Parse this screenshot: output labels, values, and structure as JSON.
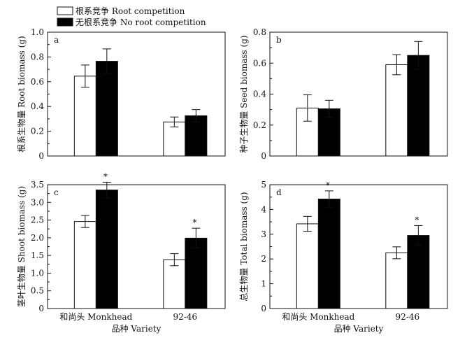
{
  "legend": {
    "entries": [
      {
        "label": "根系竞争 Root competition",
        "fill": "#ffffff"
      },
      {
        "label": "无根系竞争 No root competition",
        "fill": "#000000"
      }
    ]
  },
  "colors": {
    "root_competition": "#ffffff",
    "no_root_competition": "#000000",
    "axis": "#111111"
  },
  "chart_data": [
    {
      "type": "bar",
      "panel": "a",
      "ylabel": "根系生物量 Root biomass (g)",
      "xlabel": "",
      "categories": [
        "和尚头 Monkhead",
        "92-46"
      ],
      "ylim": [
        0,
        1.0
      ],
      "yticks": [
        0,
        0.2,
        0.4,
        0.6,
        0.8,
        1.0
      ],
      "ytick_labels": [
        "0",
        "0.2",
        "0.4",
        "0.6",
        "0.8",
        "1.0"
      ],
      "show_xtick_labels": false,
      "series": [
        {
          "name": "根系竞争 Root competition",
          "values": [
            0.645,
            0.275
          ],
          "errors": [
            0.09,
            0.04
          ],
          "sig": [
            "",
            ""
          ]
        },
        {
          "name": "无根系竞争 No root competition",
          "values": [
            0.765,
            0.325
          ],
          "errors": [
            0.1,
            0.05
          ],
          "sig": [
            "",
            ""
          ]
        }
      ]
    },
    {
      "type": "bar",
      "panel": "b",
      "ylabel": "种子生物量 Seed biomass (g)",
      "xlabel": "",
      "categories": [
        "和尚头 Monkhead",
        "92-46"
      ],
      "ylim": [
        0,
        0.8
      ],
      "yticks": [
        0,
        0.2,
        0.4,
        0.6,
        0.8
      ],
      "ytick_labels": [
        "0",
        "0.2",
        "0.4",
        "0.6",
        "0.8"
      ],
      "show_xtick_labels": false,
      "series": [
        {
          "name": "根系竞争 Root competition",
          "values": [
            0.31,
            0.59
          ],
          "errors": [
            0.085,
            0.065
          ],
          "sig": [
            "",
            ""
          ]
        },
        {
          "name": "无根系竞争 No root competition",
          "values": [
            0.305,
            0.65
          ],
          "errors": [
            0.055,
            0.09
          ],
          "sig": [
            "",
            ""
          ]
        }
      ]
    },
    {
      "type": "bar",
      "panel": "c",
      "ylabel": "茎叶生物量 Shoot biomass (g)",
      "xlabel": "品种 Variety",
      "categories": [
        "和尚头 Monkhead",
        "92-46"
      ],
      "ylim": [
        0,
        3.5
      ],
      "yticks": [
        0,
        0.5,
        1.0,
        1.5,
        2.0,
        2.5,
        3.0,
        3.5
      ],
      "ytick_labels": [
        "0",
        "0.5",
        "1.0",
        "1.5",
        "2.0",
        "2.5",
        "3.0",
        "3.5"
      ],
      "show_xtick_labels": true,
      "series": [
        {
          "name": "根系竞争 Root competition",
          "values": [
            2.46,
            1.38
          ],
          "errors": [
            0.17,
            0.17
          ],
          "sig": [
            "",
            ""
          ]
        },
        {
          "name": "无根系竞争 No root competition",
          "values": [
            3.35,
            1.99
          ],
          "errors": [
            0.22,
            0.28
          ],
          "sig": [
            "*",
            "*"
          ]
        }
      ]
    },
    {
      "type": "bar",
      "panel": "d",
      "ylabel": "总生物量 Total biomass (g)",
      "xlabel": "品种 Variety",
      "categories": [
        "和尚头 Monkhead",
        "92-46"
      ],
      "ylim": [
        0,
        5
      ],
      "yticks": [
        0,
        1,
        2,
        3,
        4,
        5
      ],
      "ytick_labels": [
        "0",
        "1",
        "2",
        "3",
        "4",
        "5"
      ],
      "show_xtick_labels": true,
      "series": [
        {
          "name": "根系竞争 Root competition",
          "values": [
            3.42,
            2.25
          ],
          "errors": [
            0.3,
            0.24
          ],
          "sig": [
            "",
            ""
          ]
        },
        {
          "name": "无根系竞争 No root competition",
          "values": [
            4.42,
            2.95
          ],
          "errors": [
            0.33,
            0.4
          ],
          "sig": [
            "*",
            "*"
          ]
        }
      ]
    }
  ]
}
